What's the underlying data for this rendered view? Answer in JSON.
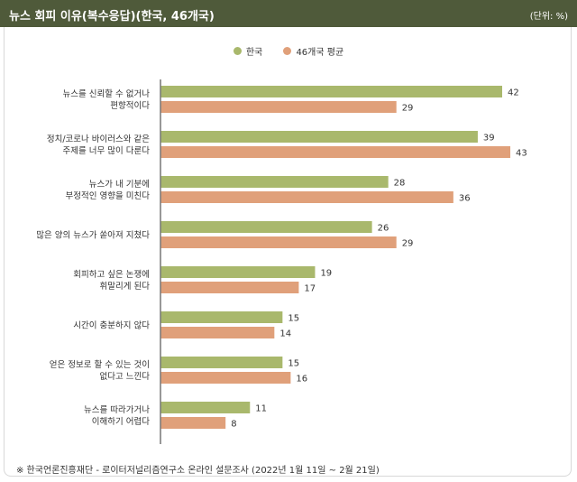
{
  "header": {
    "title": "뉴스 회피 이유(복수응답)(한국, 46개국)",
    "unit": "(단위: %)"
  },
  "legend": [
    {
      "name": "한국",
      "color": "#a9b86c"
    },
    {
      "name": "46개국 평균",
      "color": "#e0a07a"
    }
  ],
  "chart_data": {
    "type": "bar",
    "orientation": "horizontal",
    "categories": [
      [
        "뉴스를 신뢰할 수 없거나",
        "편향적이다"
      ],
      [
        "정치/코로나 바이러스와 같은",
        "주제를 너무 많이 다룬다"
      ],
      [
        "뉴스가 내 기분에",
        "부정적인 영향을 미친다"
      ],
      [
        "많은 양의 뉴스가 쏟아져 지쳤다"
      ],
      [
        "회피하고 싶은 논쟁에",
        "휘말리게 된다"
      ],
      [
        "시간이 충분하지 않다"
      ],
      [
        "얻은 정보로 할 수 있는 것이",
        "없다고 느낀다"
      ],
      [
        "뉴스를 따라가거나",
        "이해하기 어렵다"
      ]
    ],
    "series": [
      {
        "name": "한국",
        "color": "#a9b86c",
        "values": [
          42,
          39,
          28,
          26,
          19,
          15,
          15,
          11
        ]
      },
      {
        "name": "46개국 평균",
        "color": "#e0a07a",
        "values": [
          29,
          43,
          36,
          29,
          17,
          14,
          16,
          8
        ]
      }
    ],
    "xlim": [
      0,
      45
    ],
    "grid": false
  },
  "source": "※ 한국언론진흥재단 - 로이터저널리즘연구소 온라인 설문조사 (2022년 1월 11일 ~ 2월 21일)"
}
